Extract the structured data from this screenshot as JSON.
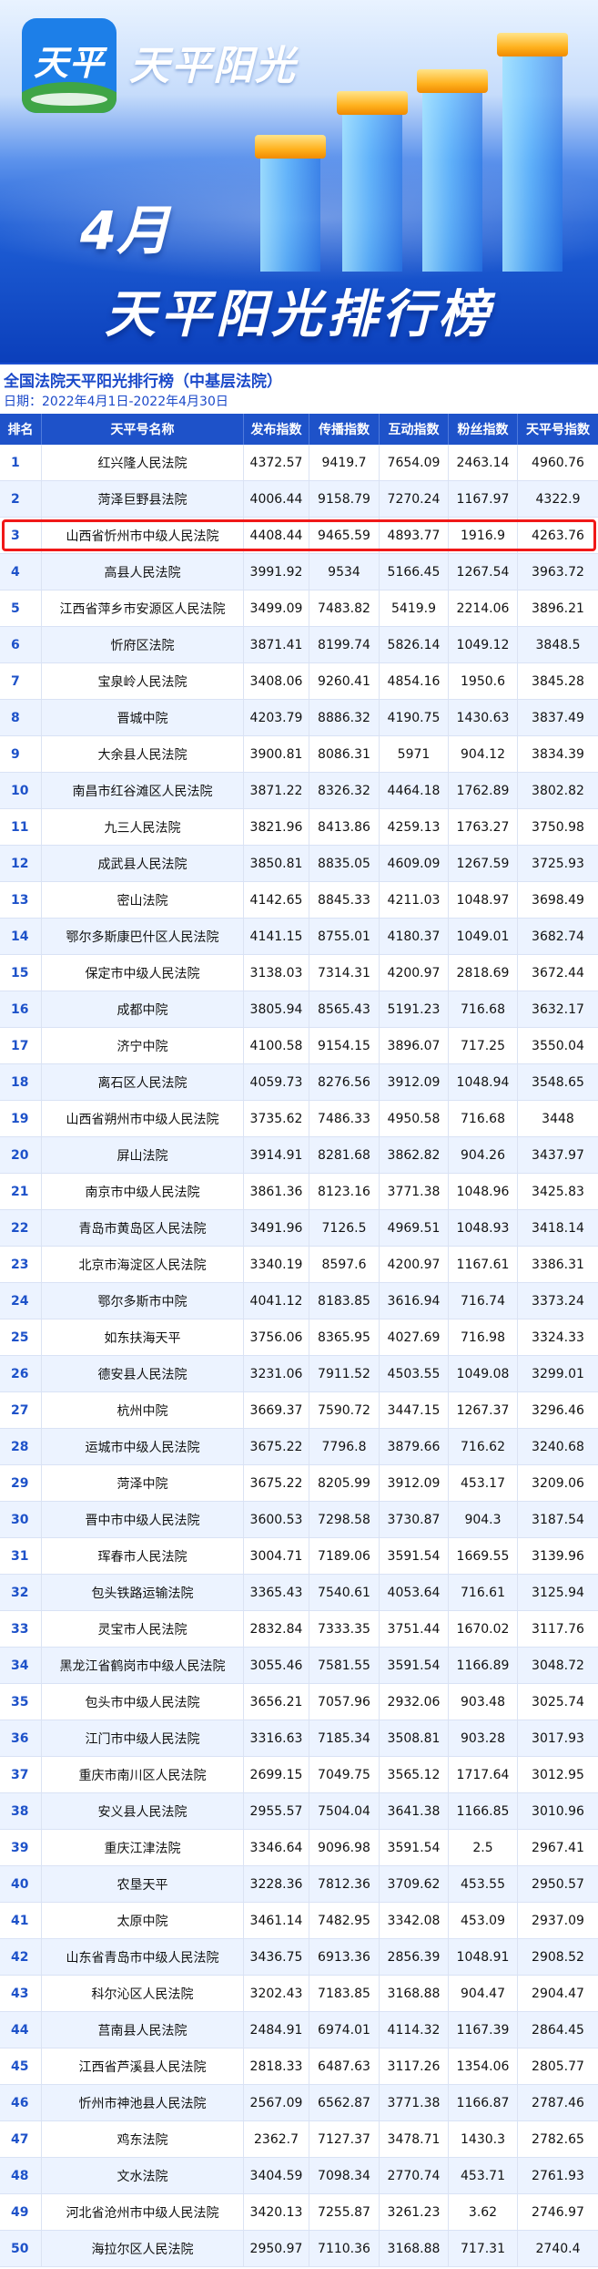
{
  "banner": {
    "logo_text": "天平",
    "brand": "天平阳光",
    "month": "4月",
    "title": "天平阳光排行榜",
    "colors": {
      "bar_cap": "#ffb21f",
      "background": "#1f5fd6"
    }
  },
  "header": {
    "title": "全国法院天平阳光排行榜（中基层法院）",
    "date": "日期：2022年4月1日-2022年4月30日"
  },
  "table": {
    "columns": [
      "排名",
      "天平号名称",
      "发布指数",
      "传播指数",
      "互动指数",
      "粉丝指数",
      "天平号指数"
    ],
    "highlight_rank": 3,
    "highlight_color": "#f01818",
    "rows": [
      [
        "1",
        "红兴隆人民法院",
        "4372.57",
        "9419.7",
        "7654.09",
        "2463.14",
        "4960.76"
      ],
      [
        "2",
        "菏泽巨野县法院",
        "4006.44",
        "9158.79",
        "7270.24",
        "1167.97",
        "4322.9"
      ],
      [
        "3",
        "山西省忻州市中级人民法院",
        "4408.44",
        "9465.59",
        "4893.77",
        "1916.9",
        "4263.76"
      ],
      [
        "4",
        "高县人民法院",
        "3991.92",
        "9534",
        "5166.45",
        "1267.54",
        "3963.72"
      ],
      [
        "5",
        "江西省萍乡市安源区人民法院",
        "3499.09",
        "7483.82",
        "5419.9",
        "2214.06",
        "3896.21"
      ],
      [
        "6",
        "忻府区法院",
        "3871.41",
        "8199.74",
        "5826.14",
        "1049.12",
        "3848.5"
      ],
      [
        "7",
        "宝泉岭人民法院",
        "3408.06",
        "9260.41",
        "4854.16",
        "1950.6",
        "3845.28"
      ],
      [
        "8",
        "晋城中院",
        "4203.79",
        "8886.32",
        "4190.75",
        "1430.63",
        "3837.49"
      ],
      [
        "9",
        "大余县人民法院",
        "3900.81",
        "8086.31",
        "5971",
        "904.12",
        "3834.39"
      ],
      [
        "10",
        "南昌市红谷滩区人民法院",
        "3871.22",
        "8326.32",
        "4464.18",
        "1762.89",
        "3802.82"
      ],
      [
        "11",
        "九三人民法院",
        "3821.96",
        "8413.86",
        "4259.13",
        "1763.27",
        "3750.98"
      ],
      [
        "12",
        "成武县人民法院",
        "3850.81",
        "8835.05",
        "4609.09",
        "1267.59",
        "3725.93"
      ],
      [
        "13",
        "密山法院",
        "4142.65",
        "8845.33",
        "4211.03",
        "1048.97",
        "3698.49"
      ],
      [
        "14",
        "鄂尔多斯康巴什区人民法院",
        "4141.15",
        "8755.01",
        "4180.37",
        "1049.01",
        "3682.74"
      ],
      [
        "15",
        "保定市中级人民法院",
        "3138.03",
        "7314.31",
        "4200.97",
        "2818.69",
        "3672.44"
      ],
      [
        "16",
        "成都中院",
        "3805.94",
        "8565.43",
        "5191.23",
        "716.68",
        "3632.17"
      ],
      [
        "17",
        "济宁中院",
        "4100.58",
        "9154.15",
        "3896.07",
        "717.25",
        "3550.04"
      ],
      [
        "18",
        "离石区人民法院",
        "4059.73",
        "8276.56",
        "3912.09",
        "1048.94",
        "3548.65"
      ],
      [
        "19",
        "山西省朔州市中级人民法院",
        "3735.62",
        "7486.33",
        "4950.58",
        "716.68",
        "3448"
      ],
      [
        "20",
        "屏山法院",
        "3914.91",
        "8281.68",
        "3862.82",
        "904.26",
        "3437.97"
      ],
      [
        "21",
        "南京市中级人民法院",
        "3861.36",
        "8123.16",
        "3771.38",
        "1048.96",
        "3425.83"
      ],
      [
        "22",
        "青岛市黄岛区人民法院",
        "3491.96",
        "7126.5",
        "4969.51",
        "1048.93",
        "3418.14"
      ],
      [
        "23",
        "北京市海淀区人民法院",
        "3340.19",
        "8597.6",
        "4200.97",
        "1167.61",
        "3386.31"
      ],
      [
        "24",
        "鄂尔多斯市中院",
        "4041.12",
        "8183.85",
        "3616.94",
        "716.74",
        "3373.24"
      ],
      [
        "25",
        "如东扶海天平",
        "3756.06",
        "8365.95",
        "4027.69",
        "716.98",
        "3324.33"
      ],
      [
        "26",
        "德安县人民法院",
        "3231.06",
        "7911.52",
        "4503.55",
        "1049.08",
        "3299.01"
      ],
      [
        "27",
        "杭州中院",
        "3669.37",
        "7590.72",
        "3447.15",
        "1267.37",
        "3296.46"
      ],
      [
        "28",
        "运城市中级人民法院",
        "3675.22",
        "7796.8",
        "3879.66",
        "716.62",
        "3240.68"
      ],
      [
        "29",
        "菏泽中院",
        "3675.22",
        "8205.99",
        "3912.09",
        "453.17",
        "3209.06"
      ],
      [
        "30",
        "晋中市中级人民法院",
        "3600.53",
        "7298.58",
        "3730.87",
        "904.3",
        "3187.54"
      ],
      [
        "31",
        "珲春市人民法院",
        "3004.71",
        "7189.06",
        "3591.54",
        "1669.55",
        "3139.96"
      ],
      [
        "32",
        "包头铁路运输法院",
        "3365.43",
        "7540.61",
        "4053.64",
        "716.61",
        "3125.94"
      ],
      [
        "33",
        "灵宝市人民法院",
        "2832.84",
        "7333.35",
        "3751.44",
        "1670.02",
        "3117.76"
      ],
      [
        "34",
        "黑龙江省鹤岗市中级人民法院",
        "3055.46",
        "7581.55",
        "3591.54",
        "1166.89",
        "3048.72"
      ],
      [
        "35",
        "包头市中级人民法院",
        "3656.21",
        "7057.96",
        "2932.06",
        "903.48",
        "3025.74"
      ],
      [
        "36",
        "江门市中级人民法院",
        "3316.63",
        "7185.34",
        "3508.81",
        "903.28",
        "3017.93"
      ],
      [
        "37",
        "重庆市南川区人民法院",
        "2699.15",
        "7049.75",
        "3565.12",
        "1717.64",
        "3012.95"
      ],
      [
        "38",
        "安义县人民法院",
        "2955.57",
        "7504.04",
        "3641.38",
        "1166.85",
        "3010.96"
      ],
      [
        "39",
        "重庆江津法院",
        "3346.64",
        "9096.98",
        "3591.54",
        "2.5",
        "2967.41"
      ],
      [
        "40",
        "农垦天平",
        "3228.36",
        "7812.36",
        "3709.62",
        "453.55",
        "2950.57"
      ],
      [
        "41",
        "太原中院",
        "3461.14",
        "7482.95",
        "3342.08",
        "453.09",
        "2937.09"
      ],
      [
        "42",
        "山东省青岛市中级人民法院",
        "3436.75",
        "6913.36",
        "2856.39",
        "1048.91",
        "2908.52"
      ],
      [
        "43",
        "科尔沁区人民法院",
        "3202.43",
        "7183.85",
        "3168.88",
        "904.47",
        "2904.47"
      ],
      [
        "44",
        "莒南县人民法院",
        "2484.91",
        "6974.01",
        "4114.32",
        "1167.39",
        "2864.45"
      ],
      [
        "45",
        "江西省芦溪县人民法院",
        "2818.33",
        "6487.63",
        "3117.26",
        "1354.06",
        "2805.77"
      ],
      [
        "46",
        "忻州市神池县人民法院",
        "2567.09",
        "6562.87",
        "3771.38",
        "1166.87",
        "2787.46"
      ],
      [
        "47",
        "鸡东法院",
        "2362.7",
        "7127.37",
        "3478.71",
        "1430.3",
        "2782.65"
      ],
      [
        "48",
        "文水法院",
        "3404.59",
        "7098.34",
        "2770.74",
        "453.71",
        "2761.93"
      ],
      [
        "49",
        "河北省沧州市中级人民法院",
        "3420.13",
        "7255.87",
        "3261.23",
        "3.62",
        "2746.97"
      ],
      [
        "50",
        "海拉尔区人民法院",
        "2950.97",
        "7110.36",
        "3168.88",
        "717.31",
        "2740.4"
      ]
    ]
  }
}
